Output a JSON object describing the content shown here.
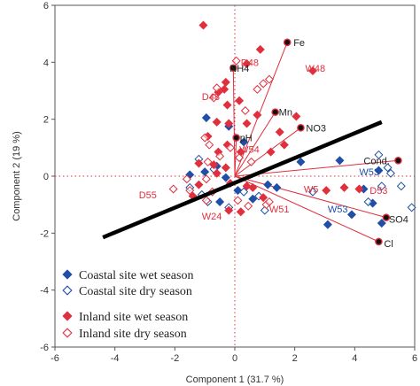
{
  "chart_data": {
    "type": "scatter",
    "subtype": "biplot",
    "xlabel": "Component 1  (31.7 %)",
    "ylabel": "Component 2  (19 %)",
    "xlim": [
      -6,
      6
    ],
    "ylim": [
      -6,
      6
    ],
    "x_ticks": [
      "-6",
      "-4",
      "-2",
      "0",
      "2",
      "4",
      "6"
    ],
    "y_ticks": [
      "6",
      "4",
      "2",
      "0",
      "-2",
      "-4",
      "-6"
    ],
    "grid": false,
    "legend_position": "bottom-left",
    "reference_lines": {
      "x": 0,
      "y": 0,
      "style": "dotted",
      "color": "#d9303e"
    },
    "trend_line": {
      "x1": -4.4,
      "y1": -2.15,
      "x2": 4.9,
      "y2": 1.9,
      "color": "#000000"
    },
    "colors": {
      "coastal": "#1f4fa8",
      "inland": "#e0303e",
      "loading": "#e0303e",
      "label_dark": "#222222"
    },
    "series": [
      {
        "name": "Coastal site wet season",
        "marker": "diamond-filled",
        "color": "#1f4fa8",
        "points": [
          [
            -0.95,
            2.05
          ],
          [
            -0.2,
            1.75
          ],
          [
            0.3,
            1.2
          ],
          [
            -0.6,
            0.35
          ],
          [
            -1.0,
            0.15
          ],
          [
            -0.3,
            -0.05
          ],
          [
            -1.5,
            0.05
          ],
          [
            0.1,
            -0.5
          ],
          [
            0.6,
            -0.8
          ],
          [
            1.1,
            -0.3
          ],
          [
            2.2,
            0.5
          ],
          [
            3.5,
            0.55
          ],
          [
            4.3,
            -0.45
          ],
          [
            4.6,
            -0.95
          ],
          [
            3.9,
            -1.35
          ],
          [
            4.9,
            -1.65
          ],
          [
            4.8,
            0.2
          ],
          [
            3.1,
            -1.7
          ],
          [
            1.4,
            -0.4
          ],
          [
            -0.5,
            -0.9
          ]
        ]
      },
      {
        "name": "Coastal site dry season",
        "marker": "diamond-open",
        "color": "#1f4fa8",
        "points": [
          [
            5.1,
            0.3
          ],
          [
            4.8,
            0.75
          ],
          [
            5.2,
            0.1
          ],
          [
            5.55,
            -0.35
          ],
          [
            5.9,
            -1.1
          ],
          [
            4.9,
            -0.35
          ],
          [
            4.45,
            -0.9
          ],
          [
            2.6,
            -0.55
          ],
          [
            1.0,
            -1.2
          ],
          [
            -0.7,
            0.25
          ],
          [
            -1.1,
            -0.65
          ],
          [
            0.3,
            -0.55
          ],
          [
            -1.2,
            0.6
          ],
          [
            -0.9,
            -0.9
          ],
          [
            -0.2,
            -1.1
          ],
          [
            -1.5,
            -0.4
          ],
          [
            0.8,
            -0.7
          ]
        ]
      },
      {
        "name": "Inland site wet season",
        "marker": "diamond-filled",
        "color": "#e0303e",
        "points": [
          [
            -1.05,
            5.3
          ],
          [
            0.85,
            4.45
          ],
          [
            0.4,
            3.95
          ],
          [
            -0.3,
            3.3
          ],
          [
            -0.35,
            3.05
          ],
          [
            -0.55,
            2.95
          ],
          [
            0.15,
            2.65
          ],
          [
            -0.25,
            2.5
          ],
          [
            -0.2,
            1.85
          ],
          [
            0.4,
            1.85
          ],
          [
            -0.6,
            1.9
          ],
          [
            0.75,
            2.15
          ],
          [
            1.5,
            1.55
          ],
          [
            -0.9,
            1.4
          ],
          [
            -0.25,
            1.1
          ],
          [
            0.2,
            0.85
          ],
          [
            -0.55,
            0.85
          ],
          [
            -1.2,
            0.45
          ],
          [
            -0.7,
            0.4
          ],
          [
            -0.3,
            0.3
          ],
          [
            -0.15,
            -0.25
          ],
          [
            -1.2,
            -0.3
          ],
          [
            -0.6,
            0.1
          ],
          [
            0.4,
            -0.35
          ],
          [
            0.6,
            -0.4
          ],
          [
            1.2,
            0.85
          ],
          [
            0.95,
            -0.75
          ],
          [
            1.65,
            1.1
          ],
          [
            2.05,
            2.1
          ],
          [
            2.6,
            3.7
          ],
          [
            3.05,
            -0.5
          ],
          [
            3.65,
            -0.4
          ],
          [
            4.15,
            -0.45
          ],
          [
            -0.2,
            -1.2
          ],
          [
            -1.4,
            -0.7
          ],
          [
            0.2,
            -1.25
          ]
        ]
      },
      {
        "name": "Inland site dry season",
        "marker": "diamond-open",
        "color": "#e0303e",
        "points": [
          [
            0.05,
            4.05
          ],
          [
            1.15,
            3.4
          ],
          [
            0.95,
            3.25
          ],
          [
            0.75,
            3.05
          ],
          [
            -0.6,
            3.1
          ],
          [
            -0.7,
            2.75
          ],
          [
            0.35,
            2.3
          ],
          [
            -0.85,
            1.1
          ],
          [
            -1.0,
            1.35
          ],
          [
            -0.15,
            1.0
          ],
          [
            0.15,
            0.65
          ],
          [
            -0.5,
            0.7
          ],
          [
            -0.9,
            0.5
          ],
          [
            0.55,
            0.5
          ],
          [
            -0.95,
            -0.1
          ],
          [
            -1.5,
            -0.5
          ],
          [
            -0.75,
            -0.55
          ],
          [
            0.45,
            -1.05
          ],
          [
            1.05,
            -1.0
          ],
          [
            -0.95,
            -0.85
          ],
          [
            -2.05,
            -0.45
          ],
          [
            -1.6,
            -0.1
          ],
          [
            0.1,
            -0.85
          ],
          [
            1.15,
            -0.9
          ]
        ]
      }
    ],
    "loadings": [
      {
        "label": "Fe",
        "x": 1.75,
        "y": 4.7,
        "color": "#222222"
      },
      {
        "label": "NH4",
        "x": -0.05,
        "y": 3.8,
        "color": "#222222"
      },
      {
        "label": "Mn",
        "x": 1.35,
        "y": 2.25,
        "color": "#222222"
      },
      {
        "label": "NO3",
        "x": 2.2,
        "y": 1.7,
        "color": "#222222"
      },
      {
        "label": "pH",
        "x": 0.05,
        "y": 1.35,
        "color": "#222222"
      },
      {
        "label": "Cond.",
        "x": 5.45,
        "y": 0.55,
        "color": "#222222"
      },
      {
        "label": "SO4",
        "x": 5.05,
        "y": -1.45,
        "color": "#222222"
      },
      {
        "label": "Cl",
        "x": 4.8,
        "y": -2.3,
        "color": "#222222"
      }
    ],
    "point_labels": [
      {
        "text": "D48",
        "x": 0.2,
        "y": 4.0,
        "color": "#e0303e"
      },
      {
        "text": "W48",
        "x": 2.35,
        "y": 3.8,
        "color": "#e0303e"
      },
      {
        "text": "D48",
        "x": -1.1,
        "y": 2.8,
        "color": "#e0303e"
      },
      {
        "text": "W54",
        "x": 0.15,
        "y": 0.95,
        "color": "#e0303e"
      },
      {
        "text": "D55",
        "x": -3.2,
        "y": -0.65,
        "color": "#e0303e"
      },
      {
        "text": "W53",
        "x": 4.15,
        "y": 0.15,
        "color": "#1f4fa8"
      },
      {
        "text": "D53",
        "x": 4.5,
        "y": -0.5,
        "color": "#e0303e"
      },
      {
        "text": "W53",
        "x": 3.1,
        "y": -1.15,
        "color": "#1f4fa8"
      },
      {
        "text": "W51",
        "x": 1.15,
        "y": -1.15,
        "color": "#e0303e"
      },
      {
        "text": "W5",
        "x": 2.3,
        "y": -0.45,
        "color": "#e0303e"
      },
      {
        "text": "W24",
        "x": -1.1,
        "y": -1.4,
        "color": "#e0303e"
      }
    ]
  },
  "legend": {
    "items": [
      {
        "label": "Coastal site wet season",
        "marker": "diamond-filled",
        "color": "#1f4fa8"
      },
      {
        "label": "Coastal site dry season",
        "marker": "diamond-open",
        "color": "#1f4fa8"
      },
      {
        "label": "Inland site wet season",
        "marker": "diamond-filled",
        "color": "#e0303e"
      },
      {
        "label": "Inland site dry season",
        "marker": "diamond-open",
        "color": "#e0303e"
      }
    ]
  }
}
